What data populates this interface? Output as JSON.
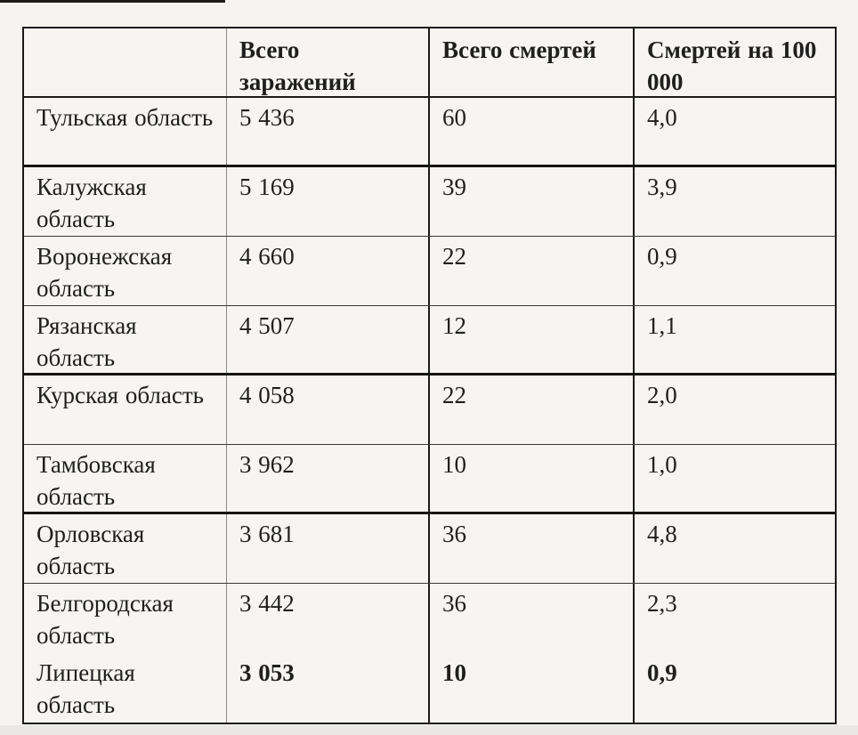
{
  "page": {
    "background_color": "#f5f4f1",
    "text_color": "#1f1f1f",
    "border_color": "#1a1a1a"
  },
  "table": {
    "columns": [
      {
        "label": ""
      },
      {
        "label": "Всего заражений"
      },
      {
        "label": "Всего смертей"
      },
      {
        "label": "Смертей на 100 000"
      }
    ],
    "rows": [
      {
        "region": "Тульская область",
        "infections": "5 436",
        "deaths": "60",
        "per100k": "4,0"
      },
      {
        "region": "Калужская область",
        "infections": "5 169",
        "deaths": "39",
        "per100k": "3,9"
      },
      {
        "region": "Воронежская область",
        "infections": "4 660",
        "deaths": "22",
        "per100k": "0,9"
      },
      {
        "region": "Рязанская область",
        "infections": "4 507",
        "deaths": "12",
        "per100k": "1,1"
      },
      {
        "region": "Курская область",
        "infections": "4 058",
        "deaths": "22",
        "per100k": "2,0"
      },
      {
        "region": "Тамбовская область",
        "infections": "3 962",
        "deaths": "10",
        "per100k": "1,0"
      },
      {
        "region": "Орловская область",
        "infections": "3 681",
        "deaths": "36",
        "per100k": "4,8"
      },
      {
        "region": "Белгородская область",
        "infections": "3 442",
        "deaths": "36",
        "per100k": "2,3"
      },
      {
        "region": "Липецкая область",
        "infections": "3 053",
        "deaths": "10",
        "per100k": "0,9"
      }
    ]
  },
  "chart_data": {
    "type": "table",
    "title": "",
    "columns": [
      "",
      "Всего заражений",
      "Всего смертей",
      "Смертей на 100 000"
    ],
    "rows": [
      [
        "Тульская область",
        5436,
        60,
        4.0
      ],
      [
        "Калужская область",
        5169,
        39,
        3.9
      ],
      [
        "Воронежская область",
        4660,
        22,
        0.9
      ],
      [
        "Рязанская область",
        4507,
        12,
        1.1
      ],
      [
        "Курская область",
        4058,
        22,
        2.0
      ],
      [
        "Тамбовская область",
        3962,
        10,
        1.0
      ],
      [
        "Орловская область",
        3681,
        36,
        4.8
      ],
      [
        "Белгородская область",
        3442,
        36,
        2.3
      ],
      [
        "Липецкая область",
        3053,
        10,
        0.9
      ]
    ],
    "notes": "Last row (Липецкая область) values rendered in bold; no separator line between Белгородская and Липецкая rows; table bottom edge cropped by image boundary."
  }
}
